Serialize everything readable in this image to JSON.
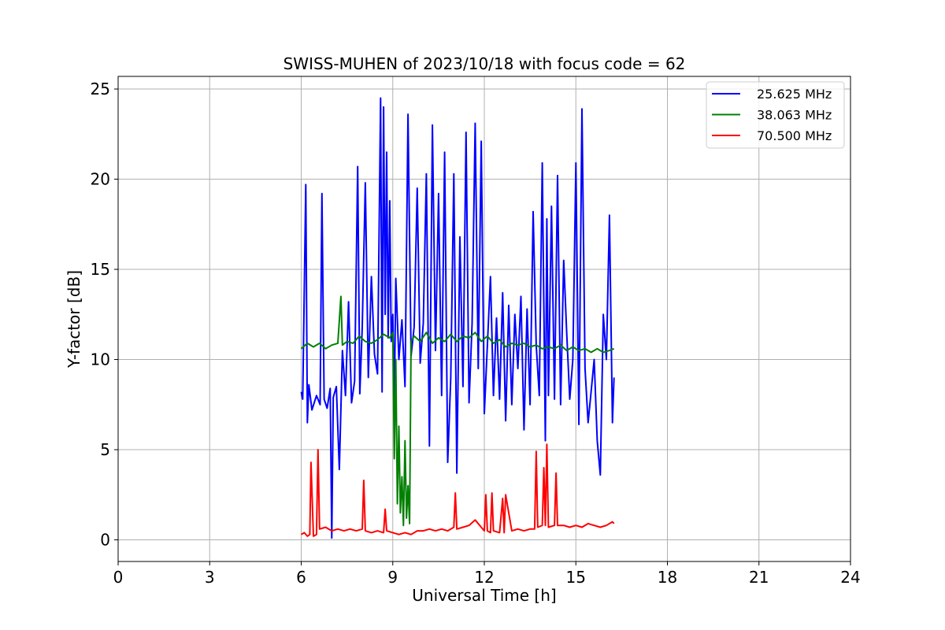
{
  "chart_data": {
    "type": "line",
    "title": "SWISS-MUHEN of 2023/10/18 with focus code = 62",
    "xlabel": "Universal Time [h]",
    "ylabel": "Y-factor [dB]",
    "xlim": [
      0,
      24
    ],
    "ylim": [
      -1.2,
      25.7
    ],
    "xticks": [
      0,
      3,
      6,
      9,
      12,
      15,
      18,
      21,
      24
    ],
    "xtick_labels": [
      "0",
      "3",
      "6",
      "9",
      "12",
      "15",
      "18",
      "21",
      "24"
    ],
    "yticks": [
      0,
      5,
      10,
      15,
      20,
      25
    ],
    "ytick_labels": [
      "0",
      "5",
      "10",
      "15",
      "20",
      "25"
    ],
    "grid": true,
    "legend_position": "top-right",
    "series": [
      {
        "name": "25.625 MHz",
        "color": "#0000ff",
        "x": [
          6.0,
          6.05,
          6.15,
          6.2,
          6.25,
          6.35,
          6.5,
          6.62,
          6.68,
          6.75,
          6.85,
          6.95,
          7.0,
          7.05,
          7.15,
          7.25,
          7.35,
          7.45,
          7.55,
          7.65,
          7.75,
          7.85,
          7.92,
          8.0,
          8.1,
          8.2,
          8.3,
          8.4,
          8.5,
          8.6,
          8.65,
          8.7,
          8.75,
          8.8,
          8.85,
          8.9,
          8.95,
          9.0,
          9.05,
          9.1,
          9.2,
          9.3,
          9.4,
          9.5,
          9.6,
          9.7,
          9.8,
          9.9,
          10.0,
          10.1,
          10.2,
          10.3,
          10.4,
          10.5,
          10.6,
          10.7,
          10.8,
          10.9,
          11.0,
          11.1,
          11.2,
          11.3,
          11.4,
          11.5,
          11.6,
          11.7,
          11.8,
          11.9,
          12.0,
          12.1,
          12.2,
          12.3,
          12.4,
          12.5,
          12.6,
          12.7,
          12.8,
          12.9,
          13.0,
          13.1,
          13.2,
          13.3,
          13.4,
          13.5,
          13.6,
          13.7,
          13.8,
          13.9,
          14.0,
          14.05,
          14.1,
          14.2,
          14.3,
          14.4,
          14.5,
          14.6,
          14.7,
          14.8,
          14.9,
          15.0,
          15.1,
          15.2,
          15.3,
          15.4,
          15.5,
          15.6,
          15.7,
          15.8,
          15.9,
          16.0,
          16.1,
          16.2,
          16.25
        ],
        "values": [
          8.2,
          7.8,
          19.7,
          6.5,
          8.6,
          7.2,
          8.0,
          7.5,
          19.2,
          7.8,
          7.3,
          8.4,
          0.1,
          7.9,
          8.5,
          3.9,
          10.5,
          8.0,
          13.2,
          7.6,
          8.8,
          20.7,
          8.1,
          11.8,
          19.8,
          9.0,
          14.6,
          10.3,
          9.2,
          24.5,
          8.2,
          24.0,
          12.5,
          21.5,
          11.2,
          18.8,
          11.0,
          12.5,
          7.5,
          14.5,
          10.0,
          12.2,
          8.5,
          23.6,
          10.2,
          11.8,
          19.5,
          9.8,
          12.0,
          20.3,
          5.2,
          23.0,
          10.5,
          19.2,
          8.0,
          21.5,
          4.3,
          9.0,
          20.3,
          3.7,
          16.8,
          8.5,
          22.6,
          7.6,
          12.0,
          23.1,
          9.5,
          22.1,
          7.0,
          10.8,
          14.6,
          8.0,
          12.3,
          7.8,
          13.7,
          6.6,
          13.0,
          7.5,
          12.5,
          9.5,
          13.5,
          6.1,
          12.8,
          7.5,
          18.2,
          10.8,
          8.0,
          20.9,
          5.5,
          17.8,
          8.0,
          18.5,
          7.8,
          20.2,
          7.5,
          15.5,
          11.5,
          7.8,
          10.0,
          20.9,
          6.4,
          23.9,
          9.5,
          6.5,
          8.2,
          10.0,
          5.5,
          3.6,
          12.5,
          10.0,
          18.0,
          6.5,
          9.0
        ]
      },
      {
        "name": "38.063 MHz",
        "color": "#008000",
        "x": [
          6.0,
          6.2,
          6.4,
          6.6,
          6.8,
          7.0,
          7.2,
          7.3,
          7.35,
          7.5,
          7.7,
          7.9,
          8.1,
          8.3,
          8.5,
          8.7,
          8.9,
          9.0,
          9.05,
          9.1,
          9.15,
          9.2,
          9.25,
          9.3,
          9.35,
          9.4,
          9.45,
          9.5,
          9.55,
          9.6,
          9.7,
          9.9,
          10.1,
          10.3,
          10.5,
          10.7,
          10.9,
          11.1,
          11.3,
          11.5,
          11.7,
          11.9,
          12.1,
          12.3,
          12.5,
          12.7,
          12.9,
          13.1,
          13.3,
          13.5,
          13.7,
          13.9,
          14.1,
          14.3,
          14.5,
          14.7,
          14.9,
          15.1,
          15.3,
          15.5,
          15.7,
          15.9,
          16.1,
          16.25
        ],
        "values": [
          10.6,
          10.9,
          10.7,
          10.9,
          10.6,
          10.8,
          10.9,
          13.5,
          10.8,
          11.0,
          10.9,
          11.3,
          11.0,
          10.9,
          11.1,
          11.4,
          11.2,
          11.5,
          4.5,
          10.0,
          2.0,
          6.3,
          1.5,
          3.5,
          0.8,
          5.5,
          1.2,
          3.0,
          0.9,
          11.0,
          11.3,
          11.0,
          11.5,
          10.9,
          11.2,
          11.0,
          11.4,
          11.0,
          11.3,
          11.2,
          11.5,
          11.0,
          11.3,
          10.9,
          11.1,
          10.7,
          10.9,
          10.8,
          10.9,
          10.7,
          10.8,
          10.6,
          10.7,
          10.6,
          10.8,
          10.5,
          10.7,
          10.5,
          10.6,
          10.4,
          10.6,
          10.4,
          10.5,
          10.6
        ]
      },
      {
        "name": "70.500 MHz",
        "color": "#ff0000",
        "x": [
          6.0,
          6.1,
          6.2,
          6.28,
          6.32,
          6.4,
          6.5,
          6.55,
          6.6,
          6.8,
          7.0,
          7.2,
          7.4,
          7.6,
          7.8,
          8.0,
          8.05,
          8.1,
          8.3,
          8.5,
          8.7,
          8.75,
          8.8,
          9.0,
          9.2,
          9.4,
          9.6,
          9.8,
          10.0,
          10.2,
          10.4,
          10.6,
          10.8,
          11.0,
          11.05,
          11.1,
          11.3,
          11.5,
          11.7,
          11.9,
          12.0,
          12.05,
          12.1,
          12.2,
          12.25,
          12.3,
          12.5,
          12.6,
          12.65,
          12.7,
          12.9,
          13.1,
          13.3,
          13.5,
          13.65,
          13.7,
          13.75,
          13.9,
          13.95,
          14.0,
          14.05,
          14.1,
          14.3,
          14.35,
          14.4,
          14.6,
          14.8,
          15.0,
          15.2,
          15.4,
          15.6,
          15.8,
          16.0,
          16.2,
          16.25
        ],
        "values": [
          0.3,
          0.4,
          0.2,
          0.3,
          4.3,
          0.2,
          0.3,
          5.0,
          0.6,
          0.7,
          0.5,
          0.6,
          0.5,
          0.6,
          0.5,
          0.6,
          3.3,
          0.5,
          0.4,
          0.5,
          0.4,
          1.7,
          0.5,
          0.4,
          0.3,
          0.4,
          0.3,
          0.5,
          0.5,
          0.6,
          0.5,
          0.6,
          0.5,
          0.7,
          2.6,
          0.6,
          0.7,
          0.8,
          1.1,
          0.7,
          0.5,
          2.5,
          0.5,
          0.4,
          2.6,
          0.5,
          0.4,
          2.3,
          0.4,
          2.5,
          0.5,
          0.6,
          0.5,
          0.6,
          0.6,
          4.9,
          0.7,
          0.8,
          4.0,
          0.8,
          5.3,
          0.7,
          0.8,
          3.7,
          0.8,
          0.8,
          0.7,
          0.8,
          0.7,
          0.9,
          0.8,
          0.7,
          0.8,
          1.0,
          0.9
        ]
      }
    ]
  }
}
